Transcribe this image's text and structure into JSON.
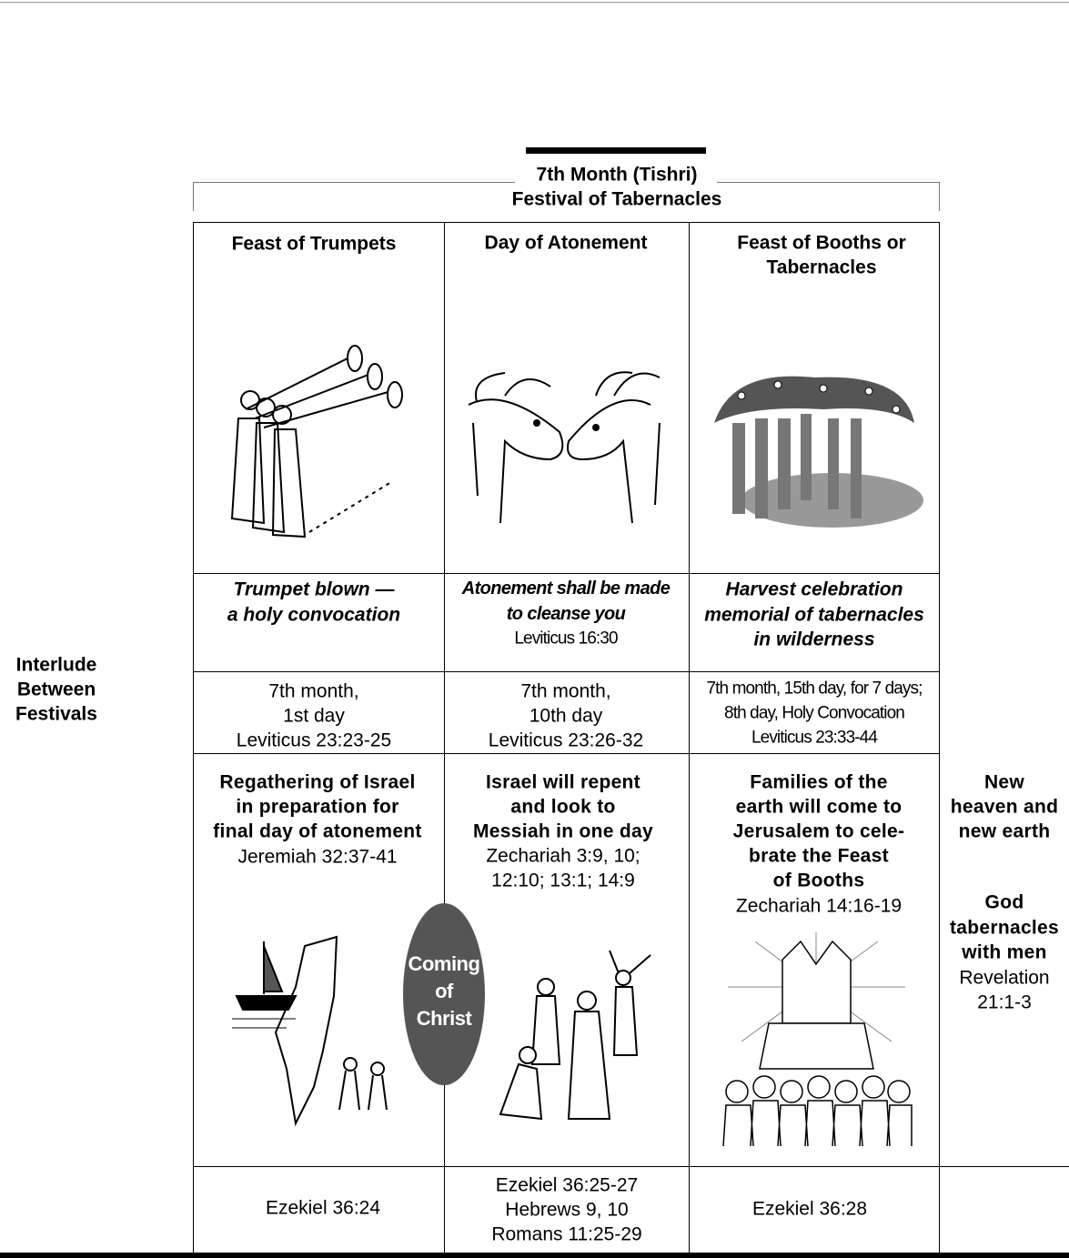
{
  "header": {
    "month": "7th Month (Tishri)",
    "festival": "Festival of Tabernacles"
  },
  "side_label": [
    "Interlude",
    "Between",
    "Festivals"
  ],
  "columns": [
    {
      "title": [
        "Feast of Trumpets"
      ],
      "summary": [
        "Trumpet blown —",
        "a holy convocation"
      ],
      "timing": [
        "7th month,",
        "1st day",
        "Leviticus 23:23-25"
      ],
      "prophecy": [
        "Regathering of Israel",
        "in preparation for",
        "final day of atonement"
      ],
      "prophecy_ref": [
        "Jeremiah 32:37-41"
      ],
      "refs": [
        "Ezekiel 36:24"
      ]
    },
    {
      "title": [
        "Day of Atonement"
      ],
      "summary": [
        "Atonement shall be made",
        "to cleanse you"
      ],
      "summary_ref": [
        "Leviticus 16:30"
      ],
      "timing": [
        "7th month,",
        "10th day",
        "Leviticus 23:26-32"
      ],
      "prophecy": [
        "Israel will repent",
        "and look to",
        "Messiah in one day"
      ],
      "prophecy_ref": [
        "Zechariah 3:9, 10;",
        "12:10; 13:1; 14:9"
      ],
      "refs": [
        "Ezekiel 36:25-27",
        "Hebrews 9, 10",
        "Romans 11:25-29"
      ]
    },
    {
      "title": [
        "Feast of Booths or",
        "Tabernacles"
      ],
      "summary": [
        "Harvest celebration",
        "memorial of tabernacles",
        "in wilderness"
      ],
      "timing": [
        "7th month, 15th day, for 7 days;",
        "8th day, Holy Convocation",
        "Leviticus 23:33-44"
      ],
      "prophecy": [
        "Families of the",
        "earth will come to",
        "Jerusalem to cele-",
        "brate the Feast",
        "of Booths"
      ],
      "prophecy_ref": [
        "Zechariah 14:16-19"
      ],
      "refs": [
        "Ezekiel 36:28"
      ]
    }
  ],
  "aftermath": {
    "new": [
      "New",
      "heaven and",
      "new earth"
    ],
    "god": [
      "God",
      "tabernacles",
      "with men"
    ],
    "ref": [
      "Revelation",
      "21:1-3"
    ]
  },
  "badge": [
    "Coming",
    "of",
    "Christ"
  ]
}
